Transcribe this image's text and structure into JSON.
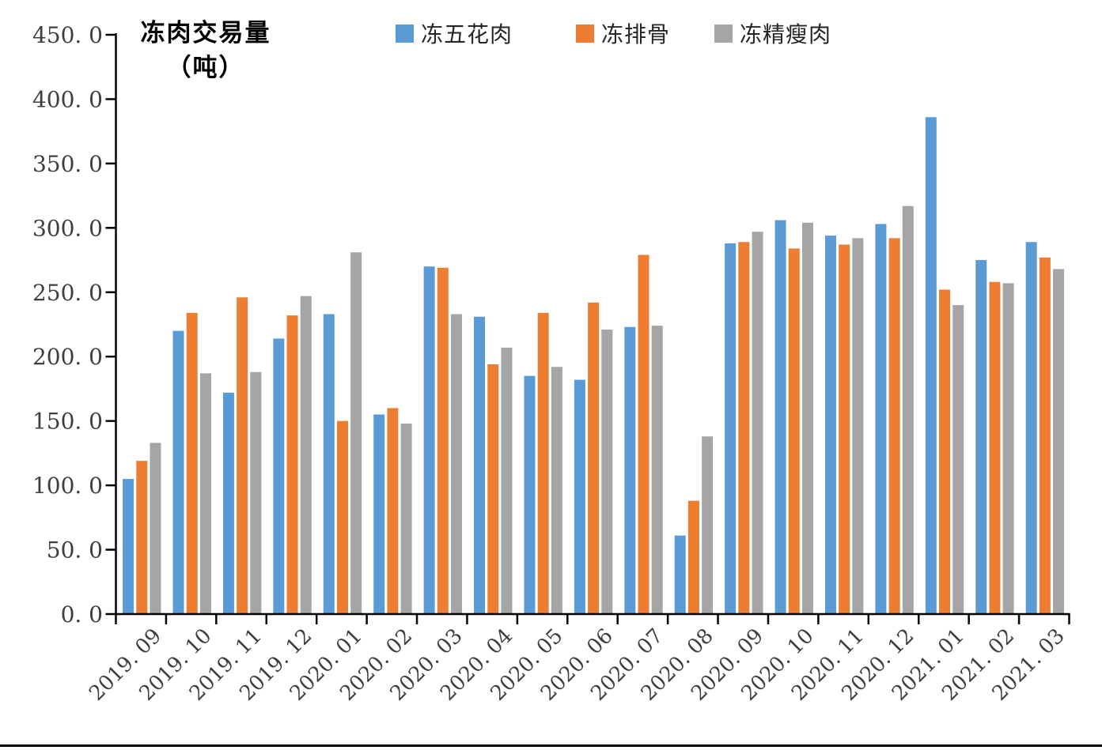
{
  "title": {
    "line1": "冻肉交易量",
    "line2": "（吨）"
  },
  "legend": [
    {
      "label": "冻五花肉",
      "color": "#5B9BD5"
    },
    {
      "label": "冻排骨",
      "color": "#ED7D31"
    },
    {
      "label": "冻精瘦肉",
      "color": "#A5A5A5"
    }
  ],
  "chart_data": {
    "type": "bar",
    "title": "冻肉交易量",
    "title_unit": "（吨）",
    "ylabel": "冻肉交易量（吨）",
    "xlabel": "",
    "categories": [
      "2019.09",
      "2019.10",
      "2019.11",
      "2019.12",
      "2020.01",
      "2020.02",
      "2020.03",
      "2020.04",
      "2020.05",
      "2020.06",
      "2020.07",
      "2020.08",
      "2020.09",
      "2020.10",
      "2020.11",
      "2020.12",
      "2021.01",
      "2021.02",
      "2021.03"
    ],
    "series": [
      {
        "name": "冻五花肉",
        "color": "#5B9BD5",
        "values": [
          105.0,
          220.0,
          172.0,
          214.0,
          233.0,
          155.0,
          270.0,
          231.0,
          185.0,
          182.0,
          223.0,
          61.0,
          288.0,
          306.0,
          294.0,
          303.0,
          386.0,
          275.0,
          289.0
        ]
      },
      {
        "name": "冻排骨",
        "color": "#ED7D31",
        "values": [
          119.0,
          234.0,
          246.0,
          232.0,
          150.0,
          160.0,
          269.0,
          194.0,
          234.0,
          242.0,
          279.0,
          88.0,
          289.0,
          284.0,
          287.0,
          292.0,
          252.0,
          258.0,
          277.0
        ]
      },
      {
        "name": "冻精瘦肉",
        "color": "#A5A5A5",
        "values": [
          133.0,
          187.0,
          188.0,
          247.0,
          281.0,
          148.0,
          233.0,
          207.0,
          192.0,
          221.0,
          224.0,
          138.0,
          297.0,
          304.0,
          292.0,
          317.0,
          240.0,
          257.0,
          268.0
        ]
      }
    ],
    "ylim": [
      0,
      450
    ],
    "y_tick_step": 50,
    "y_tick_labels": [
      "0.0",
      "50.0",
      "100.0",
      "150.0",
      "200.0",
      "250.0",
      "300.0",
      "350.0",
      "400.0",
      "450.0"
    ],
    "grid": false,
    "legend_position": "top",
    "axis_color": "#000000",
    "tick_label_color": "#3f3e3d"
  }
}
